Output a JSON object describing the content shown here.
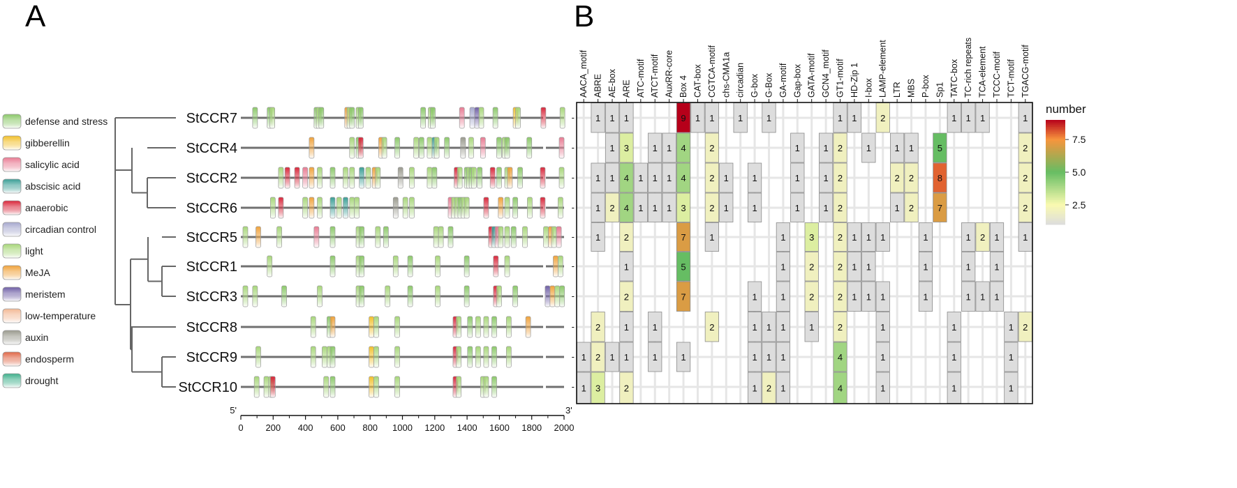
{
  "panels": {
    "a": "A",
    "b": "B"
  },
  "legend": [
    {
      "name": "defense and stress",
      "color": "#8cc96a"
    },
    {
      "name": "gibberellin",
      "color": "#f2c02b"
    },
    {
      "name": "salicylic acid",
      "color": "#e97b93"
    },
    {
      "name": "abscisic acid",
      "color": "#3a9e96"
    },
    {
      "name": "anaerobic",
      "color": "#d9263a"
    },
    {
      "name": "circadian control",
      "color": "#a7a9cf"
    },
    {
      "name": "light",
      "color": "#a8d77a"
    },
    {
      "name": "MeJA",
      "color": "#f0a23a"
    },
    {
      "name": "meristem",
      "color": "#6f5fa6"
    },
    {
      "name": "low-temperature",
      "color": "#f3b995"
    },
    {
      "name": "auxin",
      "color": "#9a9a8e"
    },
    {
      "name": "endosperm",
      "color": "#e06848"
    },
    {
      "name": "drought",
      "color": "#3fb08c"
    }
  ],
  "genes": [
    "StCCR7",
    "StCCR4",
    "StCCR2",
    "StCCR6",
    "StCCR5",
    "StCCR1",
    "StCCR3",
    "StCCR8",
    "StCCR9",
    "StCCR10"
  ],
  "promoter_axis": {
    "start_label": "5'",
    "end_label": "3'",
    "ticks": [
      "0",
      "200",
      "400",
      "600",
      "800",
      "1000",
      "1200",
      "1400",
      "1600",
      "1800",
      "2000"
    ],
    "range": [
      0,
      2000
    ]
  },
  "element_positions": [
    {
      "gene": "StCCR7",
      "elements": [
        [
          88,
          "defense and stress"
        ],
        [
          178,
          "defense and stress"
        ],
        [
          195,
          "light"
        ],
        [
          468,
          "defense and stress"
        ],
        [
          482,
          "light"
        ],
        [
          498,
          "defense and stress"
        ],
        [
          658,
          "MeJA"
        ],
        [
          672,
          "light"
        ],
        [
          688,
          "defense and stress"
        ],
        [
          728,
          "light"
        ],
        [
          742,
          "defense and stress"
        ],
        [
          1128,
          "defense and stress"
        ],
        [
          1175,
          "light"
        ],
        [
          1188,
          "defense and stress"
        ],
        [
          1368,
          "salicylic acid"
        ],
        [
          1432,
          "circadian control"
        ],
        [
          1462,
          "meristem"
        ],
        [
          1488,
          "light"
        ],
        [
          1575,
          "defense and stress"
        ],
        [
          1700,
          "gibberellin"
        ],
        [
          1715,
          "light"
        ],
        [
          1872,
          "anaerobic"
        ],
        [
          1990,
          "light"
        ]
      ]
    },
    {
      "gene": "StCCR4",
      "elements": [
        [
          438,
          "MeJA"
        ],
        [
          688,
          "light"
        ],
        [
          728,
          "defense and stress"
        ],
        [
          742,
          "anaerobic"
        ],
        [
          868,
          "MeJA"
        ],
        [
          888,
          "light"
        ],
        [
          968,
          "defense and stress"
        ],
        [
          1085,
          "light"
        ],
        [
          1118,
          "defense and stress"
        ],
        [
          1168,
          "light"
        ],
        [
          1198,
          "abscisic acid"
        ],
        [
          1212,
          "light"
        ],
        [
          1275,
          "defense and stress"
        ],
        [
          1375,
          "auxin"
        ],
        [
          1425,
          "light"
        ],
        [
          1498,
          "salicylic acid"
        ],
        [
          1598,
          "defense and stress"
        ],
        [
          1632,
          "light"
        ],
        [
          1648,
          "defense and stress"
        ],
        [
          1785,
          "defense and stress"
        ],
        [
          1985,
          "salicylic acid"
        ]
      ]
    },
    {
      "gene": "StCCR2",
      "elements": [
        [
          248,
          "light"
        ],
        [
          288,
          "anaerobic"
        ],
        [
          348,
          "anaerobic"
        ],
        [
          398,
          "salicylic acid"
        ],
        [
          438,
          "MeJA"
        ],
        [
          488,
          "light"
        ],
        [
          568,
          "defense and stress"
        ],
        [
          648,
          "light"
        ],
        [
          688,
          "light"
        ],
        [
          748,
          "abscisic acid"
        ],
        [
          788,
          "light"
        ],
        [
          828,
          "MeJA"
        ],
        [
          848,
          "light"
        ],
        [
          988,
          "auxin"
        ],
        [
          1058,
          "light"
        ],
        [
          1168,
          "light"
        ],
        [
          1198,
          "defense and stress"
        ],
        [
          1335,
          "anaerobic"
        ],
        [
          1355,
          "light"
        ],
        [
          1398,
          "defense and stress"
        ],
        [
          1412,
          "light"
        ],
        [
          1428,
          "defense and stress"
        ],
        [
          1442,
          "light"
        ],
        [
          1478,
          "defense and stress"
        ],
        [
          1558,
          "anaerobic"
        ],
        [
          1598,
          "defense and stress"
        ],
        [
          1648,
          "light"
        ],
        [
          1665,
          "MeJA"
        ],
        [
          1728,
          "defense and stress"
        ],
        [
          1868,
          "anaerobic"
        ],
        [
          1985,
          "light"
        ]
      ]
    },
    {
      "gene": "StCCR6",
      "elements": [
        [
          198,
          "light"
        ],
        [
          248,
          "anaerobic"
        ],
        [
          398,
          "light"
        ],
        [
          438,
          "MeJA"
        ],
        [
          488,
          "light"
        ],
        [
          568,
          "abscisic acid"
        ],
        [
          608,
          "light"
        ],
        [
          648,
          "abscisic acid"
        ],
        [
          688,
          "light"
        ],
        [
          718,
          "light"
        ],
        [
          958,
          "auxin"
        ],
        [
          1018,
          "light"
        ],
        [
          1058,
          "light"
        ],
        [
          1298,
          "salicylic acid"
        ],
        [
          1318,
          "light"
        ],
        [
          1338,
          "light"
        ],
        [
          1358,
          "defense and stress"
        ],
        [
          1378,
          "light"
        ],
        [
          1398,
          "light"
        ],
        [
          1518,
          "anaerobic"
        ],
        [
          1608,
          "MeJA"
        ],
        [
          1648,
          "light"
        ],
        [
          1698,
          "defense and stress"
        ],
        [
          1788,
          "light"
        ],
        [
          1868,
          "anaerobic"
        ],
        [
          1978,
          "light"
        ]
      ]
    },
    {
      "gene": "StCCR5",
      "elements": [
        [
          28,
          "light"
        ],
        [
          108,
          "MeJA"
        ],
        [
          238,
          "light"
        ],
        [
          468,
          "salicylic acid"
        ],
        [
          568,
          "defense and stress"
        ],
        [
          728,
          "light"
        ],
        [
          748,
          "defense and stress"
        ],
        [
          848,
          "light"
        ],
        [
          898,
          "defense and stress"
        ],
        [
          1208,
          "light"
        ],
        [
          1238,
          "light"
        ],
        [
          1298,
          "defense and stress"
        ],
        [
          1548,
          "anaerobic"
        ],
        [
          1568,
          "abscisic acid"
        ],
        [
          1588,
          "salicylic acid"
        ],
        [
          1608,
          "light"
        ],
        [
          1648,
          "light"
        ],
        [
          1688,
          "defense and stress"
        ],
        [
          1758,
          "light"
        ],
        [
          1888,
          "light"
        ],
        [
          1918,
          "MeJA"
        ],
        [
          1938,
          "light"
        ],
        [
          1968,
          "salicylic acid"
        ]
      ]
    },
    {
      "gene": "StCCR1",
      "elements": [
        [
          178,
          "light"
        ],
        [
          568,
          "defense and stress"
        ],
        [
          728,
          "light"
        ],
        [
          748,
          "defense and stress"
        ],
        [
          958,
          "light"
        ],
        [
          1048,
          "defense and stress"
        ],
        [
          1218,
          "light"
        ],
        [
          1398,
          "defense and stress"
        ],
        [
          1578,
          "anaerobic"
        ],
        [
          1648,
          "light"
        ],
        [
          1948,
          "MeJA"
        ],
        [
          1978,
          "light"
        ]
      ]
    },
    {
      "gene": "StCCR3",
      "elements": [
        [
          28,
          "light"
        ],
        [
          88,
          "light"
        ],
        [
          268,
          "defense and stress"
        ],
        [
          488,
          "light"
        ],
        [
          728,
          "light"
        ],
        [
          748,
          "defense and stress"
        ],
        [
          908,
          "light"
        ],
        [
          1048,
          "defense and stress"
        ],
        [
          1218,
          "light"
        ],
        [
          1398,
          "defense and stress"
        ],
        [
          1578,
          "anaerobic"
        ],
        [
          1598,
          "light"
        ],
        [
          1698,
          "defense and stress"
        ],
        [
          1898,
          "meristem"
        ],
        [
          1928,
          "MeJA"
        ],
        [
          1958,
          "light"
        ],
        [
          1988,
          "defense and stress"
        ]
      ]
    },
    {
      "gene": "StCCR8",
      "elements": [
        [
          448,
          "light"
        ],
        [
          548,
          "defense and stress"
        ],
        [
          568,
          "MeJA"
        ],
        [
          808,
          "gibberellin"
        ],
        [
          838,
          "light"
        ],
        [
          968,
          "light"
        ],
        [
          1328,
          "anaerobic"
        ],
        [
          1348,
          "light"
        ],
        [
          1418,
          "defense and stress"
        ],
        [
          1468,
          "light"
        ],
        [
          1518,
          "light"
        ],
        [
          1568,
          "defense and stress"
        ],
        [
          1658,
          "light"
        ],
        [
          1778,
          "MeJA"
        ]
      ]
    },
    {
      "gene": "StCCR9",
      "elements": [
        [
          108,
          "light"
        ],
        [
          448,
          "light"
        ],
        [
          518,
          "light"
        ],
        [
          548,
          "light"
        ],
        [
          568,
          "defense and stress"
        ],
        [
          808,
          "gibberellin"
        ],
        [
          838,
          "light"
        ],
        [
          968,
          "light"
        ],
        [
          1328,
          "anaerobic"
        ],
        [
          1348,
          "light"
        ],
        [
          1418,
          "defense and stress"
        ],
        [
          1468,
          "light"
        ],
        [
          1518,
          "light"
        ],
        [
          1568,
          "defense and stress"
        ],
        [
          1658,
          "light"
        ]
      ]
    },
    {
      "gene": "StCCR10",
      "elements": [
        [
          98,
          "light"
        ],
        [
          158,
          "light"
        ],
        [
          188,
          "light"
        ],
        [
          198,
          "anaerobic"
        ],
        [
          528,
          "light"
        ],
        [
          568,
          "defense and stress"
        ],
        [
          808,
          "gibberellin"
        ],
        [
          838,
          "light"
        ],
        [
          968,
          "light"
        ],
        [
          1328,
          "anaerobic"
        ],
        [
          1348,
          "light"
        ],
        [
          1498,
          "light"
        ],
        [
          1518,
          "light"
        ],
        [
          1568,
          "defense and stress"
        ]
      ]
    }
  ],
  "chart_data": {
    "type": "heatmap",
    "title": "",
    "colorbar": {
      "title": "number",
      "ticks": [
        2.5,
        5.0,
        7.5
      ],
      "tick_labels": [
        "2.5",
        "5.0",
        "7.5"
      ],
      "range": [
        1,
        9
      ]
    },
    "columns": [
      "AACA_motif",
      "ABRE",
      "AE-box",
      "ARE",
      "ATC-motif",
      "ATCT-motif",
      "AuxRR-core",
      "Box 4",
      "CAT-box",
      "CGTCA-motif",
      "chs-CMA1a",
      "circadian",
      "G-box",
      "G-Box",
      "GA-motif",
      "Gap-box",
      "GATA-motif",
      "GCN4_motif",
      "GT1-motif",
      "HD-Zip 1",
      "I-box",
      "LAMP-element",
      "LTR",
      "MBS",
      "P-box",
      "Sp1",
      "TATC-box",
      "TC-rich repeats",
      "TCA-element",
      "TCCC-motif",
      "TCT-motif",
      "TGACG-motif"
    ],
    "rows": [
      "StCCR7",
      "StCCR4",
      "StCCR2",
      "StCCR6",
      "StCCR5",
      "StCCR1",
      "StCCR3",
      "StCCR8",
      "StCCR9",
      "StCCR10"
    ],
    "values": [
      [
        0,
        1,
        1,
        1,
        0,
        0,
        0,
        9,
        1,
        1,
        0,
        1,
        0,
        1,
        0,
        0,
        0,
        0,
        1,
        1,
        0,
        2,
        0,
        0,
        0,
        0,
        1,
        1,
        1,
        0,
        0,
        1
      ],
      [
        0,
        0,
        1,
        3,
        0,
        1,
        1,
        4,
        0,
        2,
        0,
        0,
        0,
        0,
        0,
        1,
        0,
        1,
        2,
        0,
        1,
        0,
        1,
        1,
        0,
        5,
        0,
        0,
        0,
        0,
        0,
        2
      ],
      [
        0,
        1,
        1,
        4,
        1,
        1,
        1,
        4,
        0,
        2,
        1,
        0,
        1,
        0,
        0,
        1,
        0,
        1,
        2,
        0,
        0,
        0,
        2,
        2,
        0,
        8,
        0,
        0,
        0,
        0,
        0,
        2
      ],
      [
        0,
        1,
        2,
        4,
        1,
        1,
        1,
        3,
        0,
        2,
        1,
        0,
        1,
        0,
        0,
        1,
        0,
        1,
        2,
        0,
        0,
        0,
        1,
        2,
        0,
        7,
        0,
        0,
        0,
        0,
        0,
        2
      ],
      [
        0,
        1,
        0,
        2,
        0,
        0,
        0,
        7,
        0,
        1,
        0,
        0,
        0,
        0,
        1,
        0,
        3,
        0,
        2,
        1,
        1,
        1,
        0,
        0,
        1,
        0,
        0,
        1,
        2,
        1,
        0,
        1
      ],
      [
        0,
        0,
        0,
        1,
        0,
        0,
        0,
        5,
        0,
        0,
        0,
        0,
        0,
        0,
        1,
        0,
        2,
        0,
        2,
        1,
        1,
        0,
        0,
        0,
        1,
        0,
        0,
        1,
        0,
        1,
        0,
        0
      ],
      [
        0,
        0,
        0,
        2,
        0,
        0,
        0,
        7,
        0,
        0,
        0,
        0,
        1,
        0,
        1,
        0,
        2,
        0,
        2,
        1,
        1,
        1,
        0,
        0,
        1,
        0,
        0,
        1,
        1,
        1,
        0,
        0
      ],
      [
        0,
        2,
        0,
        1,
        0,
        1,
        0,
        0,
        0,
        2,
        0,
        0,
        1,
        1,
        1,
        0,
        1,
        0,
        2,
        0,
        0,
        1,
        0,
        0,
        0,
        0,
        1,
        0,
        0,
        0,
        1,
        2
      ],
      [
        1,
        2,
        1,
        1,
        0,
        1,
        0,
        1,
        0,
        0,
        0,
        0,
        1,
        1,
        1,
        0,
        0,
        0,
        4,
        0,
        0,
        1,
        0,
        0,
        0,
        0,
        1,
        0,
        0,
        0,
        1,
        0
      ],
      [
        1,
        3,
        0,
        2,
        0,
        0,
        0,
        0,
        0,
        0,
        0,
        0,
        1,
        2,
        1,
        0,
        0,
        0,
        4,
        0,
        0,
        1,
        0,
        0,
        0,
        0,
        1,
        0,
        0,
        0,
        1,
        0
      ]
    ]
  }
}
